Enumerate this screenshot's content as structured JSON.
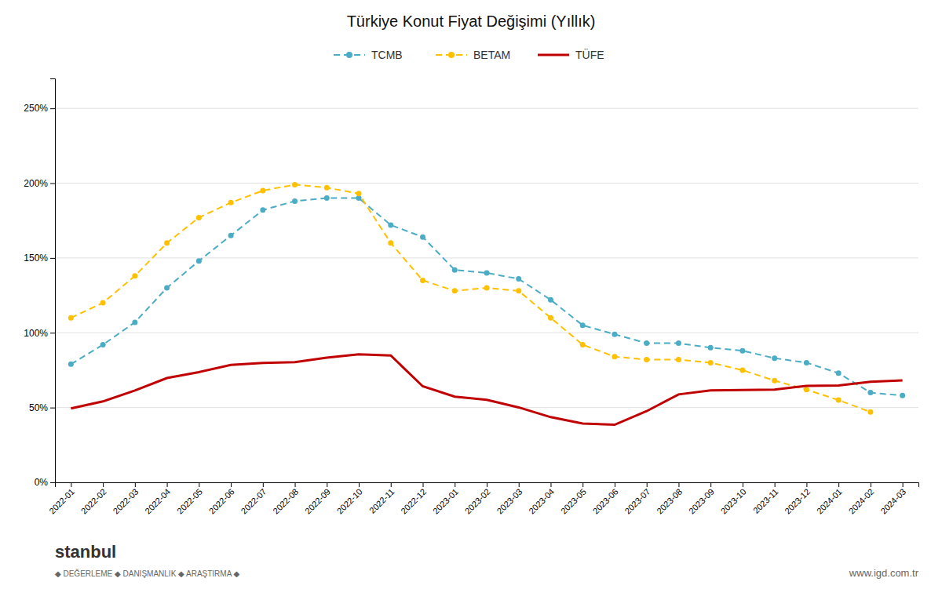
{
  "chart_data": {
    "type": "line",
    "title": "Türkiye Konut Fiyat Değişimi (Yıllık)",
    "categories": [
      "2022-01",
      "2022-02",
      "2022-03",
      "2022-04",
      "2022-05",
      "2022-06",
      "2022-07",
      "2022-08",
      "2022-09",
      "2022-10",
      "2022-11",
      "2022-12",
      "2023-01",
      "2023-02",
      "2023-03",
      "2023-04",
      "2023-05",
      "2023-06",
      "2023-07",
      "2023-08",
      "2023-09",
      "2023-10",
      "2023-11",
      "2023-12",
      "2024-01",
      "2024-02",
      "2024-03"
    ],
    "series": [
      {
        "name": "TCMB",
        "color": "#4BACC6",
        "line_style": "dashed",
        "marker": "circle",
        "values": [
          0.79,
          0.92,
          1.07,
          1.3,
          1.48,
          1.65,
          1.82,
          1.88,
          1.9,
          1.9,
          1.72,
          1.64,
          1.42,
          1.4,
          1.36,
          1.22,
          1.05,
          0.99,
          0.93,
          0.93,
          0.9,
          0.88,
          0.83,
          0.8,
          0.73,
          0.6,
          0.58
        ]
      },
      {
        "name": "BETAM",
        "color": "#FFC000",
        "line_style": "dashed",
        "marker": "circle",
        "values": [
          1.1,
          1.2,
          1.38,
          1.6,
          1.77,
          1.87,
          1.95,
          1.99,
          1.97,
          1.93,
          1.6,
          1.35,
          1.28,
          1.3,
          1.28,
          1.1,
          0.92,
          0.84,
          0.82,
          0.82,
          0.8,
          0.75,
          0.68,
          0.62,
          0.55,
          0.47,
          null
        ]
      },
      {
        "name": "TÜFE",
        "color": "#C00000",
        "line_style": "solid",
        "marker": "none",
        "values": [
          0.494,
          0.541,
          0.614,
          0.697,
          0.737,
          0.785,
          0.798,
          0.804,
          0.833,
          0.856,
          0.848,
          0.642,
          0.573,
          0.552,
          0.501,
          0.436,
          0.393,
          0.385,
          0.476,
          0.588,
          0.615,
          0.617,
          0.62,
          0.645,
          0.647,
          0.672,
          0.682
        ]
      }
    ],
    "ylim": [
      0,
      2.7
    ],
    "yticks": [
      {
        "value": 0,
        "label": "0%"
      },
      {
        "value": 0.5,
        "label": "50%"
      },
      {
        "value": 1.0,
        "label": "100%"
      },
      {
        "value": 1.5,
        "label": "150%"
      },
      {
        "value": 2.0,
        "label": "200%"
      },
      {
        "value": 2.5,
        "label": "250%"
      }
    ],
    "grid": true,
    "legend": "top",
    "annotations": [
      "stanbul",
      "◆  DEĞERLEME   ◆  DANIŞMANLIK   ◆  ARAŞTIRMA   ◆",
      "www.igd.com.tr"
    ]
  }
}
